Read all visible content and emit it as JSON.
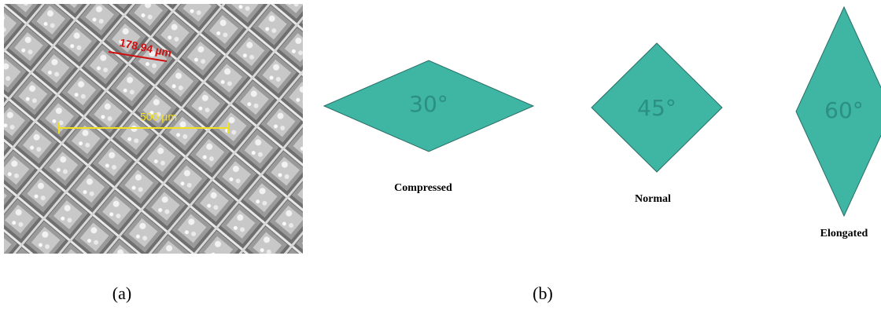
{
  "panel_a": {
    "measurements": [
      "178.94 µm",
      "500 µm"
    ],
    "caption": "(a)"
  },
  "panel_b": {
    "shapes": [
      {
        "angle": "30°",
        "label": "Compressed"
      },
      {
        "angle": "45°",
        "label": "Normal"
      },
      {
        "angle": "60°",
        "label": "Elongated"
      }
    ],
    "caption": "(b)"
  }
}
